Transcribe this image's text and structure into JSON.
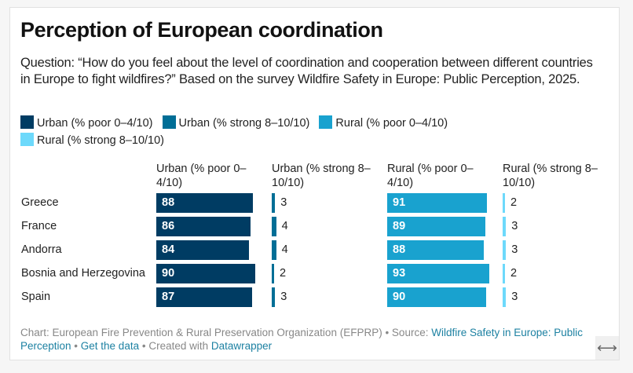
{
  "title": "Perception of European coordination",
  "description": "Question: “How do you feel about the level of coordination and cooperation between different countries in Europe to fight wildfires?” Based on the survey Wildfire Safety in Europe: Public Perception, 2025.",
  "colors": {
    "urban_poor": "#003c63",
    "urban_strong": "#006e96",
    "rural_poor": "#19a2cf",
    "rural_strong": "#6dd9fb"
  },
  "legend": [
    {
      "label": "Urban (% poor 0–4/10)",
      "color": "#003c63"
    },
    {
      "label": "Urban (% strong 8–10/10)",
      "color": "#006e96"
    },
    {
      "label": "Rural (% poor 0–4/10)",
      "color": "#19a2cf"
    },
    {
      "label": "Rural (% strong 8–10/10)",
      "color": "#6dd9fb"
    }
  ],
  "chart_data": {
    "type": "bar",
    "orientation": "horizontal",
    "layout": "split-columns",
    "title": "Perception of European coordination",
    "categories": [
      "Greece",
      "France",
      "Andorra",
      "Bosnia and Herzegovina",
      "Spain"
    ],
    "series": [
      {
        "name": "Urban (% poor 0–4/10)",
        "values": [
          88,
          86,
          84,
          90,
          87
        ],
        "color": "#003c63"
      },
      {
        "name": "Urban (% strong 8–10/10)",
        "values": [
          3,
          4,
          4,
          2,
          3
        ],
        "color": "#006e96"
      },
      {
        "name": "Rural (% poor 0–4/10)",
        "values": [
          91,
          89,
          88,
          93,
          90
        ],
        "color": "#19a2cf"
      },
      {
        "name": "Rural (% strong 8–10/10)",
        "values": [
          2,
          3,
          3,
          2,
          3
        ],
        "color": "#6dd9fb"
      }
    ],
    "xlim": [
      0,
      100
    ],
    "grid": false,
    "legend_position": "top"
  },
  "footer": {
    "chart_prefix": "Chart: European Fire Prevention & Rural Preservation Organization (EFPRP) • Source: ",
    "source_link": "Wildfire Safety in Europe: Public Perception",
    "sep1": " • ",
    "data_link": "Get the data",
    "sep2": " • Created with ",
    "dw_link": "Datawrapper"
  },
  "resize_icon": "⟷"
}
